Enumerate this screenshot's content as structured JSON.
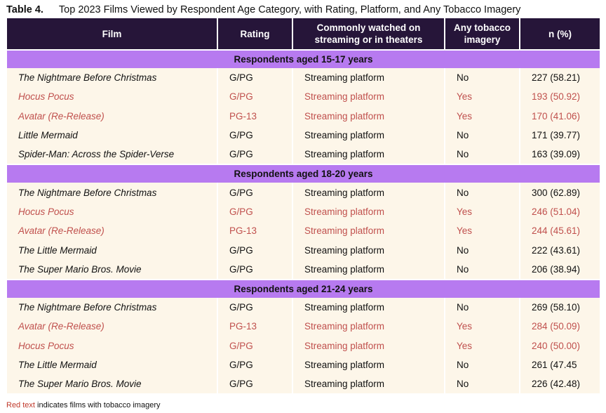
{
  "caption": {
    "label": "Table 4.",
    "title": "Top 2023 Films Viewed by Respondent Age Category, with Rating, Platform, and Any Tobacco Imagery"
  },
  "columns": [
    "Film",
    "Rating",
    "Commonly watched on streaming or in theaters",
    "Any tobacco imagery",
    "n (%)"
  ],
  "groups": [
    {
      "title": "Respondents aged 15-17 years",
      "rows": [
        {
          "film": "The Nightmare Before Christmas",
          "rating": "G/PG",
          "platform": "Streaming platform",
          "tobacco": "No",
          "n": "227 (58.21)",
          "red": false
        },
        {
          "film": "Hocus Pocus",
          "rating": "G/PG",
          "platform": "Streaming platform",
          "tobacco": "Yes",
          "n": "193 (50.92)",
          "red": true
        },
        {
          "film": "Avatar (Re-Release)",
          "rating": "PG-13",
          "platform": "Streaming platform",
          "tobacco": "Yes",
          "n": "170 (41.06)",
          "red": true
        },
        {
          "film": "Little Mermaid",
          "rating": "G/PG",
          "platform": "Streaming platform",
          "tobacco": "No",
          "n": "171 (39.77)",
          "red": false
        },
        {
          "film": "Spider-Man: Across the Spider-Verse",
          "rating": "G/PG",
          "platform": "Streaming platform",
          "tobacco": "No",
          "n": "163 (39.09)",
          "red": false
        }
      ]
    },
    {
      "title": "Respondents aged 18-20 years",
      "rows": [
        {
          "film": "The Nightmare Before Christmas",
          "rating": "G/PG",
          "platform": "Streaming platform",
          "tobacco": "No",
          "n": "300 (62.89)",
          "red": false
        },
        {
          "film": "Hocus Pocus",
          "rating": "G/PG",
          "platform": "Streaming platform",
          "tobacco": "Yes",
          "n": "246 (51.04)",
          "red": true
        },
        {
          "film": "Avatar (Re-Release)",
          "rating": "PG-13",
          "platform": "Streaming platform",
          "tobacco": "Yes",
          "n": "244 (45.61)",
          "red": true
        },
        {
          "film": "The Little Mermaid",
          "rating": "G/PG",
          "platform": "Streaming platform",
          "tobacco": "No",
          "n": "222 (43.61)",
          "red": false
        },
        {
          "film": "The Super Mario Bros. Movie",
          "rating": "G/PG",
          "platform": "Streaming platform",
          "tobacco": "No",
          "n": "206 (38.94)",
          "red": false
        }
      ]
    },
    {
      "title": "Respondents aged 21-24 years",
      "rows": [
        {
          "film": "The Nightmare Before Christmas",
          "rating": "G/PG",
          "platform": "Streaming platform",
          "tobacco": "No",
          "n": "269 (58.10)",
          "red": false
        },
        {
          "film": "Avatar (Re-Release)",
          "rating": "PG-13",
          "platform": "Streaming platform",
          "tobacco": "Yes",
          "n": "284 (50.09)",
          "red": true
        },
        {
          "film": "Hocus Pocus",
          "rating": "G/PG",
          "platform": "Streaming platform",
          "tobacco": "Yes",
          "n": "240 (50.00)",
          "red": true
        },
        {
          "film": "The Little Mermaid",
          "rating": "G/PG",
          "platform": "Streaming platform",
          "tobacco": "No",
          "n": "261 (47.45",
          "red": false
        },
        {
          "film": "The Super Mario Bros. Movie",
          "rating": "G/PG",
          "platform": "Streaming platform",
          "tobacco": "No",
          "n": "226 (42.48)",
          "red": false
        }
      ]
    }
  ],
  "footnote": {
    "red_text": "Red text",
    "rest": " indicates films with tobacco imagery"
  },
  "colors": {
    "header_bg": "#261539",
    "group_bg": "#b77af0",
    "row_bg": "#fdf6e9",
    "tobacco_red": "#c0504d"
  }
}
